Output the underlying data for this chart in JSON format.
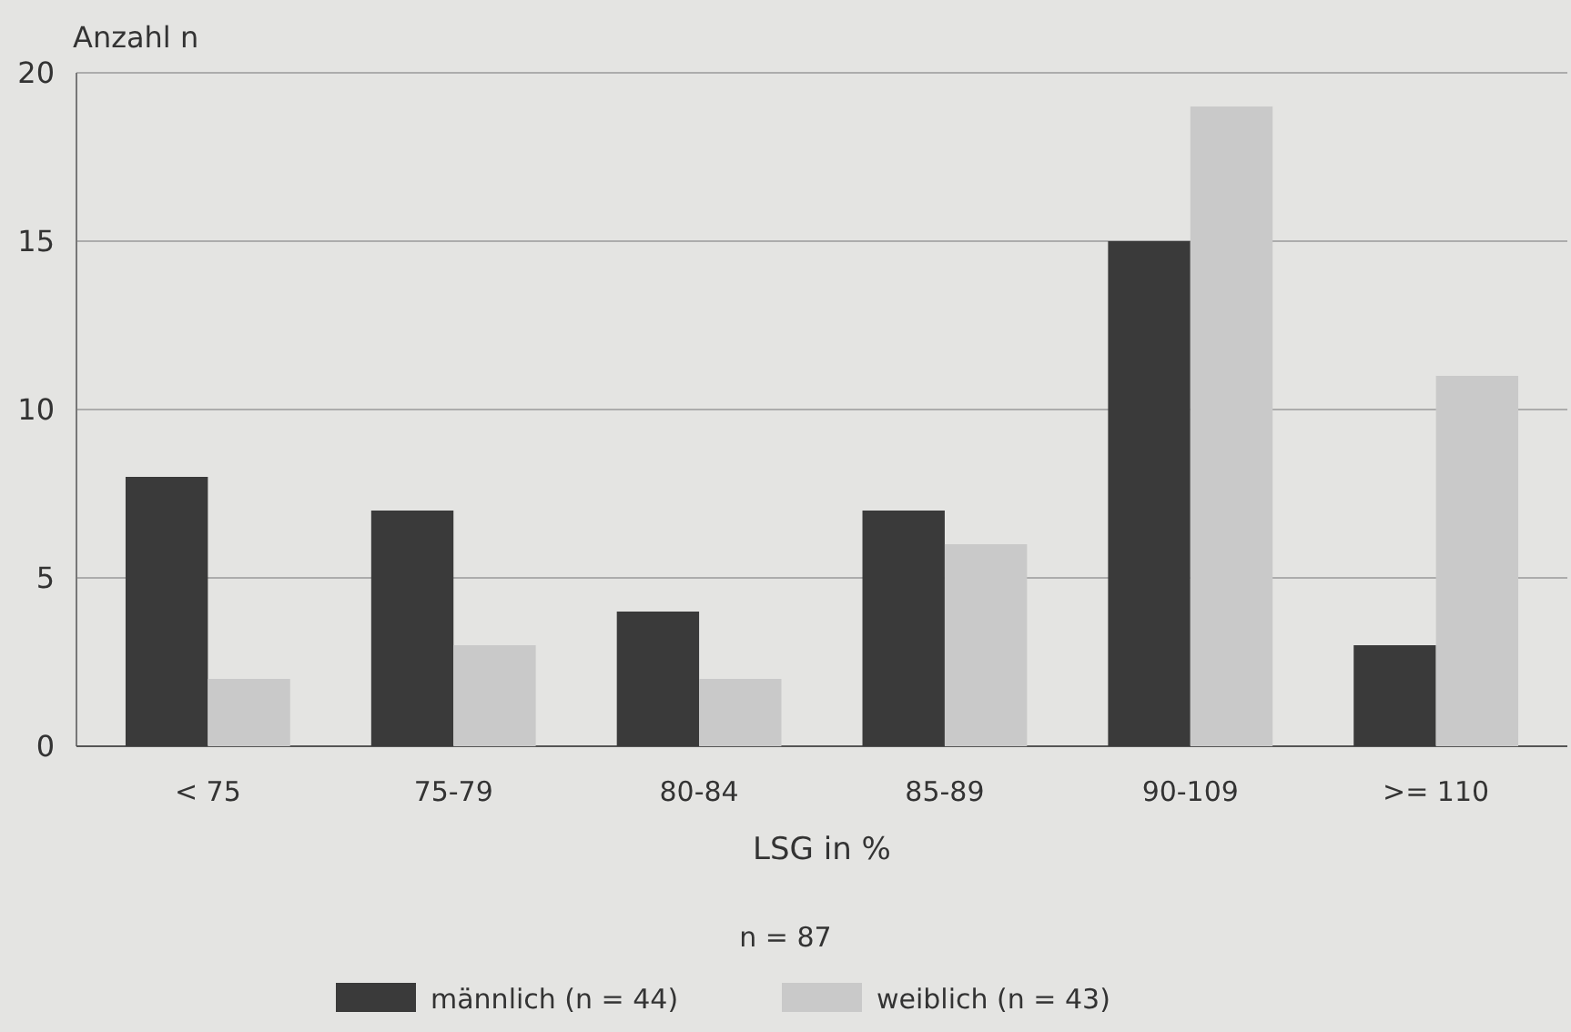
{
  "chart_data": {
    "type": "bar",
    "ylabel": "Anzahl n",
    "xlabel": "LSG in %",
    "categories": [
      "< 75",
      "75-79",
      "80-84",
      "85-89",
      "90-109",
      ">= 110"
    ],
    "series": [
      {
        "name": "männlich (n = 44)",
        "color": "#3a3a3a",
        "values": [
          8,
          7,
          4,
          7,
          15,
          3
        ]
      },
      {
        "name": "weiblich (n = 43)",
        "color": "#c9c9c9",
        "values": [
          2,
          3,
          2,
          6,
          19,
          11
        ]
      }
    ],
    "ylim": [
      0,
      20
    ],
    "yticks": [
      0,
      5,
      10,
      15,
      20
    ],
    "grid": "y",
    "legend": "bottom",
    "annotations": [
      "n = 87"
    ]
  }
}
